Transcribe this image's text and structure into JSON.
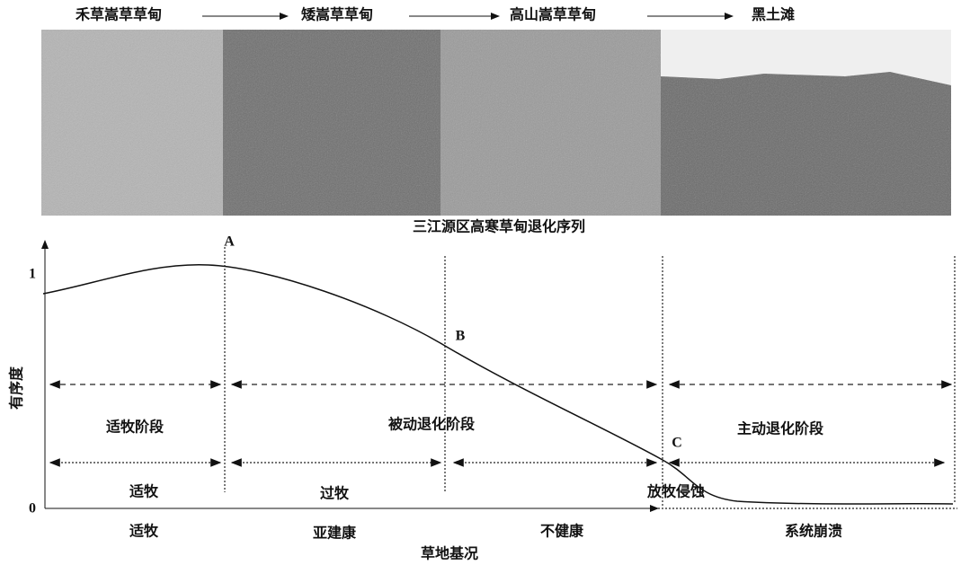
{
  "stages": [
    "禾草嵩草草甸",
    "矮嵩草草甸",
    "高山嵩草草甸",
    "黑土滩"
  ],
  "caption": "三江源区高寒草甸退化序列",
  "y_axis": {
    "label": "有序度",
    "ticks": [
      "1",
      "0"
    ]
  },
  "points": [
    "A",
    "B",
    "C"
  ],
  "phases": [
    "适牧阶段",
    "被动退化阶段",
    "主动退化阶段"
  ],
  "grazing": [
    "适牧",
    "过牧",
    "放牧侵蚀"
  ],
  "condition": [
    "适牧",
    "亚建康",
    "不健康",
    "系统崩溃"
  ],
  "x_axis": {
    "label": "草地基况"
  }
}
